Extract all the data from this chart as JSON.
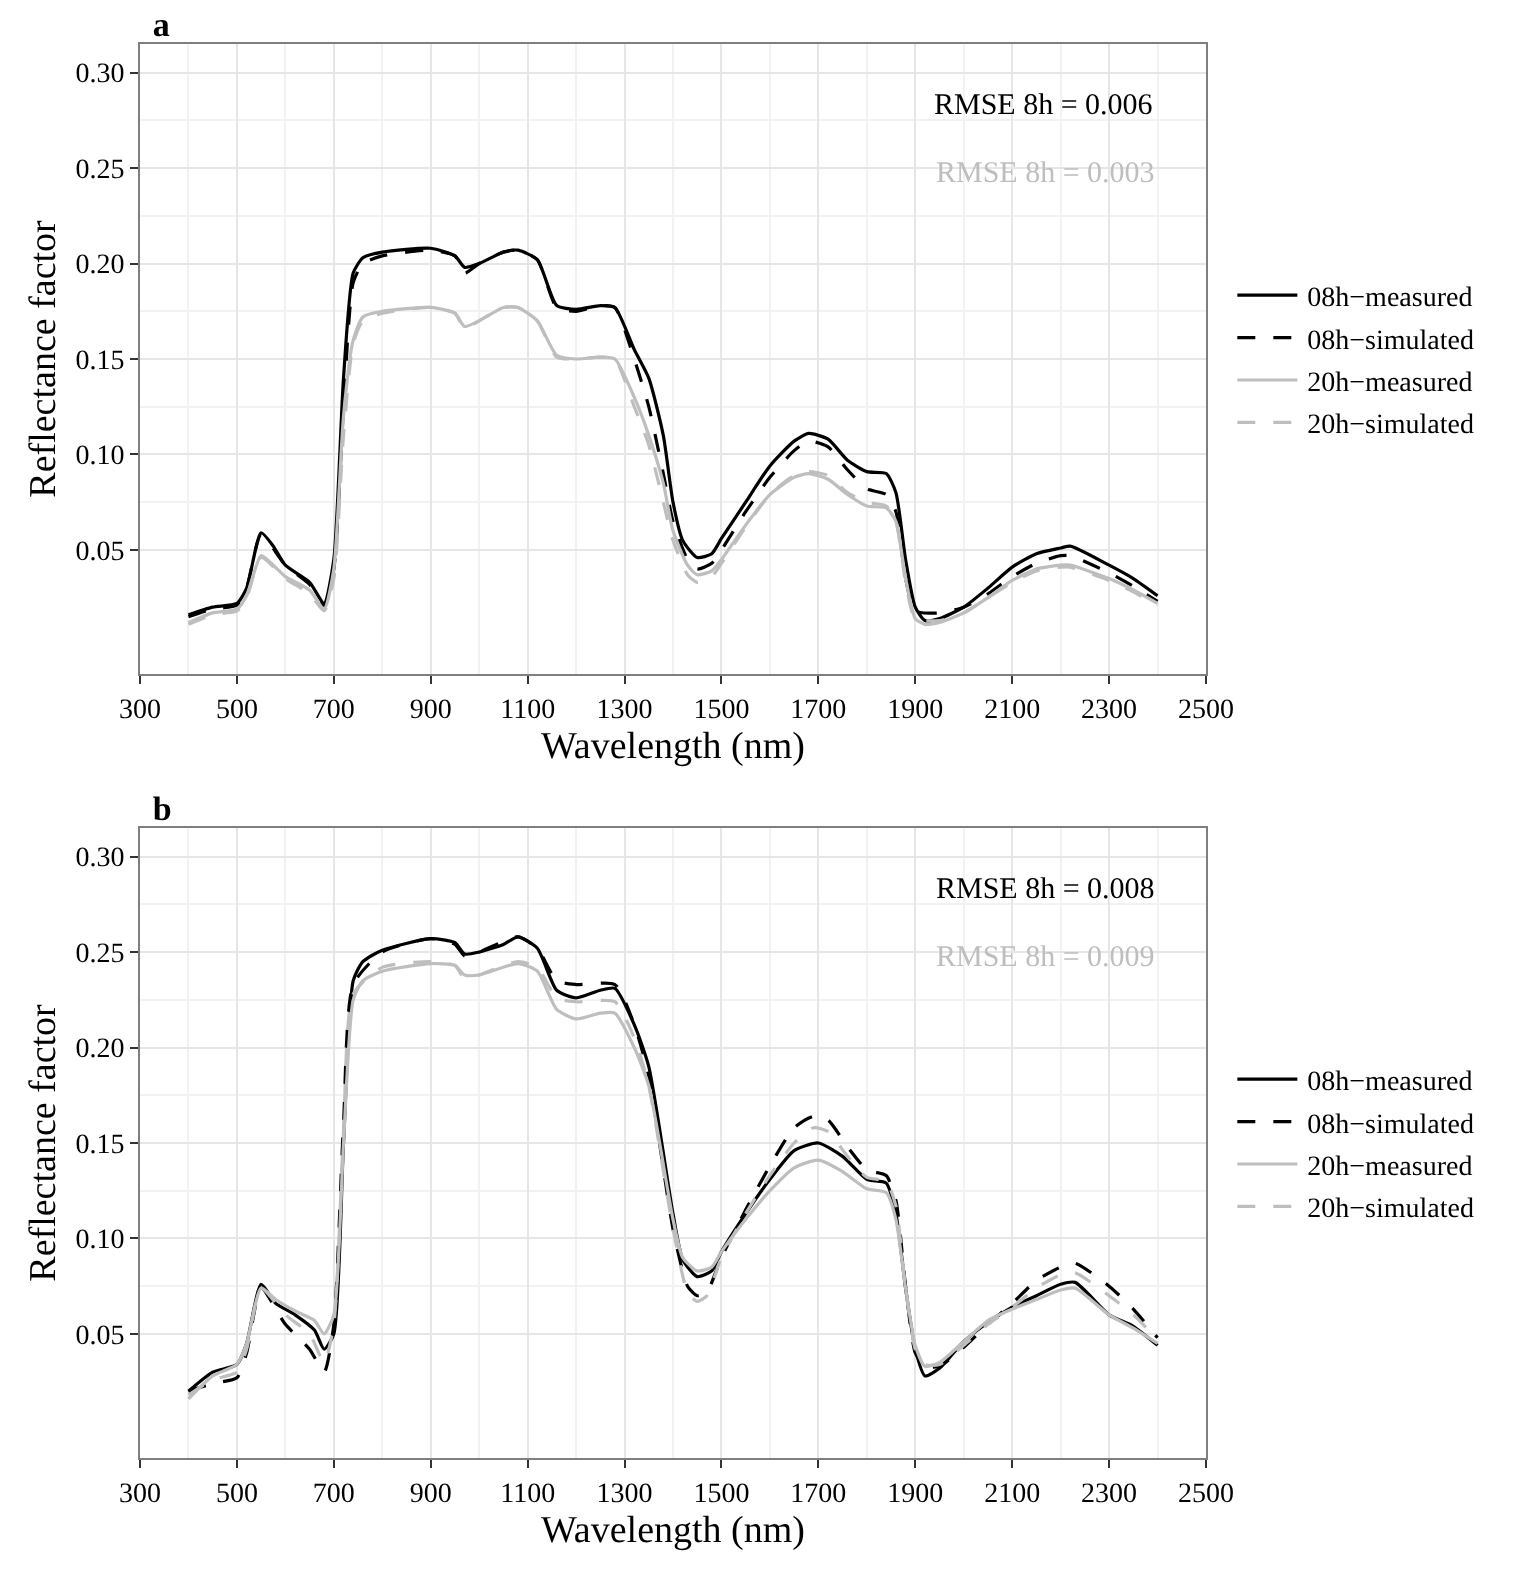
{
  "chart_data": [
    {
      "type": "line",
      "title": "a",
      "xlabel": "Wavelength (nm)",
      "ylabel": "Reflectance factor",
      "xlim": [
        300,
        2500
      ],
      "ylim": [
        -0.015,
        0.315
      ],
      "xticks": [
        300,
        500,
        700,
        900,
        1100,
        1300,
        1500,
        1700,
        1900,
        2100,
        2300,
        2500
      ],
      "yticks": [
        {
          "value": 0.05,
          "label": "0.05"
        },
        {
          "value": 0.1,
          "label": "0.10"
        },
        {
          "value": 0.15,
          "label": "0.15"
        },
        {
          "value": 0.2,
          "label": "0.20"
        },
        {
          "value": 0.25,
          "label": "0.25"
        },
        {
          "value": 0.3,
          "label": "0.30"
        }
      ],
      "grid": true,
      "legend": "right",
      "annotations": [
        "RMSE 8h = 0.006",
        "RMSE 8h = 0.003"
      ],
      "series": [
        {
          "name": "08h−measured",
          "color": "#000000",
          "line_style": "solid",
          "x": [
            400,
            450,
            500,
            520,
            550,
            575,
            600,
            650,
            680,
            700,
            720,
            740,
            760,
            800,
            900,
            950,
            970,
            1000,
            1050,
            1080,
            1120,
            1160,
            1200,
            1250,
            1280,
            1320,
            1350,
            1380,
            1400,
            1420,
            1450,
            1480,
            1500,
            1550,
            1600,
            1650,
            1680,
            1720,
            1760,
            1800,
            1840,
            1860,
            1880,
            1900,
            1920,
            1950,
            2000,
            2050,
            2100,
            2150,
            2200,
            2220,
            2300,
            2350,
            2400
          ],
          "values": [
            0.016,
            0.02,
            0.022,
            0.03,
            0.059,
            0.052,
            0.042,
            0.033,
            0.022,
            0.045,
            0.14,
            0.195,
            0.203,
            0.206,
            0.208,
            0.204,
            0.198,
            0.2,
            0.206,
            0.207,
            0.202,
            0.178,
            0.176,
            0.178,
            0.177,
            0.155,
            0.14,
            0.11,
            0.075,
            0.055,
            0.046,
            0.048,
            0.056,
            0.075,
            0.094,
            0.107,
            0.111,
            0.108,
            0.097,
            0.091,
            0.09,
            0.08,
            0.045,
            0.02,
            0.013,
            0.014,
            0.02,
            0.03,
            0.041,
            0.048,
            0.051,
            0.052,
            0.042,
            0.035,
            0.026
          ]
        },
        {
          "name": "08h−simulated",
          "color": "#000000",
          "line_style": "dashed",
          "x": [
            400,
            450,
            500,
            520,
            550,
            600,
            650,
            680,
            700,
            720,
            740,
            760,
            800,
            900,
            950,
            970,
            1000,
            1050,
            1080,
            1120,
            1160,
            1200,
            1250,
            1280,
            1320,
            1350,
            1380,
            1400,
            1430,
            1450,
            1480,
            1500,
            1550,
            1600,
            1650,
            1680,
            1720,
            1760,
            1800,
            1840,
            1860,
            1880,
            1900,
            1950,
            2000,
            2050,
            2100,
            2150,
            2200,
            2220,
            2300,
            2350,
            2400
          ],
          "values": [
            0.015,
            0.019,
            0.021,
            0.03,
            0.058,
            0.042,
            0.032,
            0.021,
            0.04,
            0.125,
            0.19,
            0.2,
            0.204,
            0.207,
            0.204,
            0.195,
            0.2,
            0.206,
            0.207,
            0.202,
            0.177,
            0.175,
            0.178,
            0.177,
            0.15,
            0.125,
            0.09,
            0.065,
            0.045,
            0.04,
            0.043,
            0.05,
            0.07,
            0.088,
            0.102,
            0.107,
            0.104,
            0.092,
            0.082,
            0.079,
            0.07,
            0.035,
            0.018,
            0.017,
            0.02,
            0.027,
            0.036,
            0.043,
            0.047,
            0.047,
            0.038,
            0.031,
            0.023
          ]
        },
        {
          "name": "20h−measured",
          "color": "#bebebe",
          "line_style": "solid",
          "x": [
            400,
            450,
            500,
            520,
            550,
            575,
            600,
            650,
            680,
            700,
            720,
            740,
            760,
            800,
            900,
            950,
            970,
            1000,
            1050,
            1080,
            1120,
            1160,
            1200,
            1250,
            1280,
            1320,
            1350,
            1380,
            1400,
            1430,
            1450,
            1480,
            1500,
            1550,
            1600,
            1650,
            1680,
            1720,
            1760,
            1800,
            1840,
            1860,
            1880,
            1900,
            1920,
            1950,
            2000,
            2050,
            2100,
            2150,
            2200,
            2220,
            2300,
            2350,
            2400
          ],
          "values": [
            0.012,
            0.017,
            0.019,
            0.026,
            0.047,
            0.042,
            0.036,
            0.029,
            0.019,
            0.04,
            0.12,
            0.16,
            0.172,
            0.175,
            0.177,
            0.174,
            0.167,
            0.17,
            0.177,
            0.177,
            0.17,
            0.152,
            0.15,
            0.151,
            0.15,
            0.13,
            0.11,
            0.085,
            0.06,
            0.042,
            0.037,
            0.039,
            0.045,
            0.063,
            0.079,
            0.088,
            0.09,
            0.087,
            0.079,
            0.073,
            0.072,
            0.065,
            0.035,
            0.014,
            0.011,
            0.012,
            0.017,
            0.025,
            0.034,
            0.04,
            0.042,
            0.042,
            0.035,
            0.029,
            0.022
          ]
        },
        {
          "name": "20h−simulated",
          "color": "#bebebe",
          "line_style": "dashed",
          "x": [
            400,
            450,
            500,
            520,
            550,
            600,
            650,
            680,
            700,
            720,
            740,
            760,
            800,
            900,
            950,
            970,
            1000,
            1050,
            1080,
            1120,
            1160,
            1200,
            1250,
            1280,
            1320,
            1350,
            1380,
            1400,
            1430,
            1450,
            1480,
            1500,
            1550,
            1600,
            1650,
            1680,
            1720,
            1760,
            1800,
            1840,
            1860,
            1880,
            1900,
            1950,
            2000,
            2050,
            2100,
            2150,
            2200,
            2220,
            2300,
            2350,
            2400
          ],
          "values": [
            0.011,
            0.016,
            0.018,
            0.025,
            0.046,
            0.035,
            0.027,
            0.018,
            0.035,
            0.11,
            0.158,
            0.17,
            0.174,
            0.177,
            0.174,
            0.166,
            0.17,
            0.177,
            0.177,
            0.17,
            0.151,
            0.15,
            0.151,
            0.15,
            0.125,
            0.105,
            0.075,
            0.055,
            0.037,
            0.033,
            0.036,
            0.043,
            0.062,
            0.079,
            0.089,
            0.091,
            0.089,
            0.08,
            0.075,
            0.073,
            0.065,
            0.033,
            0.014,
            0.013,
            0.017,
            0.025,
            0.033,
            0.039,
            0.041,
            0.041,
            0.034,
            0.028,
            0.021
          ]
        }
      ]
    },
    {
      "type": "line",
      "title": "b",
      "xlabel": "Wavelength (nm)",
      "ylabel": "Reflectance factor",
      "xlim": [
        300,
        2500
      ],
      "ylim": [
        -0.015,
        0.315
      ],
      "xticks": [
        300,
        500,
        700,
        900,
        1100,
        1300,
        1500,
        1700,
        1900,
        2100,
        2300,
        2500
      ],
      "yticks": [
        {
          "value": 0.05,
          "label": "0.05"
        },
        {
          "value": 0.1,
          "label": "0.10"
        },
        {
          "value": 0.15,
          "label": "0.15"
        },
        {
          "value": 0.2,
          "label": "0.20"
        },
        {
          "value": 0.25,
          "label": "0.25"
        },
        {
          "value": 0.3,
          "label": "0.30"
        }
      ],
      "grid": true,
      "legend": "right",
      "annotations": [
        "RMSE 8h = 0.008",
        "RMSE 8h = 0.009"
      ],
      "series": [
        {
          "name": "08h−measured",
          "color": "#000000",
          "line_style": "solid",
          "x": [
            400,
            450,
            500,
            520,
            550,
            580,
            620,
            660,
            680,
            700,
            720,
            740,
            760,
            800,
            900,
            950,
            970,
            1000,
            1050,
            1080,
            1120,
            1160,
            1200,
            1250,
            1280,
            1320,
            1350,
            1400,
            1420,
            1450,
            1480,
            1500,
            1550,
            1600,
            1650,
            1700,
            1750,
            1800,
            1840,
            1860,
            1880,
            1900,
            1920,
            1950,
            2000,
            2050,
            2100,
            2150,
            2200,
            2230,
            2300,
            2350,
            2400
          ],
          "values": [
            0.02,
            0.03,
            0.034,
            0.045,
            0.076,
            0.066,
            0.06,
            0.052,
            0.042,
            0.05,
            0.15,
            0.235,
            0.245,
            0.251,
            0.257,
            0.255,
            0.249,
            0.25,
            0.254,
            0.258,
            0.252,
            0.23,
            0.226,
            0.23,
            0.231,
            0.212,
            0.19,
            0.113,
            0.089,
            0.08,
            0.083,
            0.093,
            0.113,
            0.131,
            0.146,
            0.15,
            0.143,
            0.131,
            0.129,
            0.113,
            0.074,
            0.042,
            0.028,
            0.032,
            0.046,
            0.056,
            0.064,
            0.07,
            0.076,
            0.077,
            0.06,
            0.054,
            0.044
          ]
        },
        {
          "name": "08h−simulated",
          "color": "#000000",
          "line_style": "dashed",
          "x": [
            400,
            450,
            500,
            520,
            550,
            600,
            650,
            680,
            700,
            720,
            740,
            800,
            900,
            950,
            970,
            1000,
            1080,
            1120,
            1160,
            1200,
            1280,
            1320,
            1350,
            1400,
            1430,
            1450,
            1470,
            1500,
            1550,
            1600,
            1650,
            1690,
            1720,
            1760,
            1800,
            1840,
            1860,
            1880,
            1900,
            1920,
            1950,
            2000,
            2050,
            2100,
            2150,
            2200,
            2230,
            2300,
            2350,
            2400
          ],
          "values": [
            0.02,
            0.024,
            0.027,
            0.04,
            0.074,
            0.055,
            0.042,
            0.03,
            0.055,
            0.16,
            0.233,
            0.25,
            0.257,
            0.254,
            0.248,
            0.25,
            0.258,
            0.252,
            0.235,
            0.233,
            0.233,
            0.212,
            0.185,
            0.105,
            0.075,
            0.07,
            0.072,
            0.09,
            0.115,
            0.138,
            0.158,
            0.164,
            0.162,
            0.148,
            0.136,
            0.133,
            0.12,
            0.075,
            0.04,
            0.033,
            0.033,
            0.043,
            0.055,
            0.066,
            0.078,
            0.085,
            0.087,
            0.075,
            0.063,
            0.048
          ]
        },
        {
          "name": "20h−measured",
          "color": "#bebebe",
          "line_style": "solid",
          "x": [
            400,
            450,
            500,
            520,
            550,
            580,
            620,
            660,
            680,
            700,
            720,
            740,
            760,
            800,
            900,
            950,
            970,
            1000,
            1080,
            1120,
            1160,
            1200,
            1250,
            1280,
            1320,
            1350,
            1400,
            1420,
            1450,
            1480,
            1500,
            1550,
            1600,
            1650,
            1700,
            1750,
            1800,
            1840,
            1860,
            1880,
            1900,
            1920,
            1950,
            2000,
            2050,
            2100,
            2150,
            2200,
            2230,
            2300,
            2350,
            2400
          ],
          "values": [
            0.016,
            0.028,
            0.034,
            0.045,
            0.074,
            0.068,
            0.062,
            0.057,
            0.05,
            0.06,
            0.15,
            0.225,
            0.235,
            0.24,
            0.244,
            0.243,
            0.238,
            0.238,
            0.244,
            0.24,
            0.22,
            0.215,
            0.218,
            0.218,
            0.2,
            0.18,
            0.11,
            0.09,
            0.083,
            0.085,
            0.093,
            0.11,
            0.125,
            0.137,
            0.141,
            0.135,
            0.126,
            0.124,
            0.11,
            0.074,
            0.044,
            0.033,
            0.035,
            0.046,
            0.057,
            0.063,
            0.068,
            0.073,
            0.074,
            0.06,
            0.053,
            0.045
          ]
        },
        {
          "name": "20h−simulated",
          "color": "#bebebe",
          "line_style": "dashed",
          "x": [
            400,
            450,
            500,
            520,
            550,
            600,
            650,
            680,
            700,
            720,
            740,
            800,
            900,
            950,
            970,
            1000,
            1080,
            1120,
            1160,
            1200,
            1280,
            1320,
            1350,
            1400,
            1430,
            1450,
            1470,
            1500,
            1550,
            1600,
            1650,
            1690,
            1720,
            1760,
            1800,
            1840,
            1860,
            1880,
            1900,
            1920,
            1950,
            2000,
            2050,
            2100,
            2150,
            2200,
            2230,
            2300,
            2350,
            2400
          ],
          "values": [
            0.018,
            0.026,
            0.03,
            0.042,
            0.074,
            0.06,
            0.05,
            0.035,
            0.055,
            0.155,
            0.228,
            0.242,
            0.245,
            0.243,
            0.236,
            0.238,
            0.245,
            0.242,
            0.226,
            0.224,
            0.224,
            0.205,
            0.18,
            0.105,
            0.072,
            0.067,
            0.07,
            0.09,
            0.113,
            0.133,
            0.15,
            0.158,
            0.156,
            0.143,
            0.132,
            0.13,
            0.117,
            0.074,
            0.042,
            0.034,
            0.034,
            0.044,
            0.055,
            0.064,
            0.074,
            0.081,
            0.082,
            0.07,
            0.06,
            0.047
          ]
        }
      ]
    }
  ]
}
